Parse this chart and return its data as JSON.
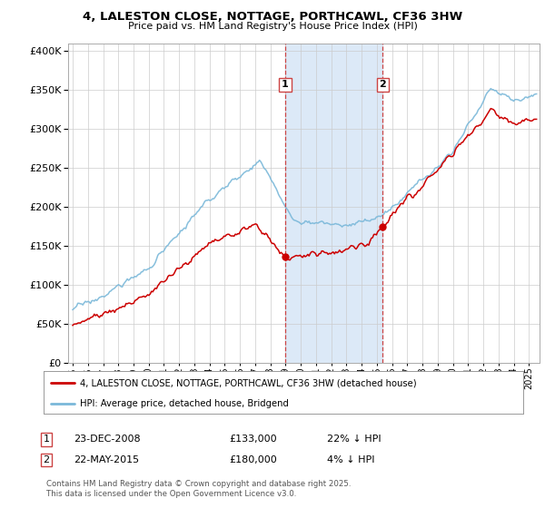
{
  "title": "4, LALESTON CLOSE, NOTTAGE, PORTHCAWL, CF36 3HW",
  "subtitle": "Price paid vs. HM Land Registry's House Price Index (HPI)",
  "ylabel_values": [
    0,
    50000,
    100000,
    150000,
    200000,
    250000,
    300000,
    350000,
    400000
  ],
  "ylim": [
    0,
    410000
  ],
  "xlim_start": 1994.7,
  "xlim_end": 2025.7,
  "transaction1_date": 2008.97,
  "transaction1_price": 133000,
  "transaction1_label": "1",
  "transaction2_date": 2015.38,
  "transaction2_price": 180000,
  "transaction2_label": "2",
  "shade_color": "#dce9f7",
  "line_color_red": "#cc0000",
  "line_color_blue": "#7ab8d9",
  "vline_color": "#cc4444",
  "legend_label_red": "4, LALESTON CLOSE, NOTTAGE, PORTHCAWL, CF36 3HW (detached house)",
  "legend_label_blue": "HPI: Average price, detached house, Bridgend",
  "footnote1_label": "1",
  "footnote1_date": "23-DEC-2008",
  "footnote1_price": "£133,000",
  "footnote1_note": "22% ↓ HPI",
  "footnote2_label": "2",
  "footnote2_date": "22-MAY-2015",
  "footnote2_price": "£180,000",
  "footnote2_note": "4% ↓ HPI",
  "copyright": "Contains HM Land Registry data © Crown copyright and database right 2025.\nThis data is licensed under the Open Government Licence v3.0.",
  "background_color": "#ffffff",
  "grid_color": "#cccccc"
}
